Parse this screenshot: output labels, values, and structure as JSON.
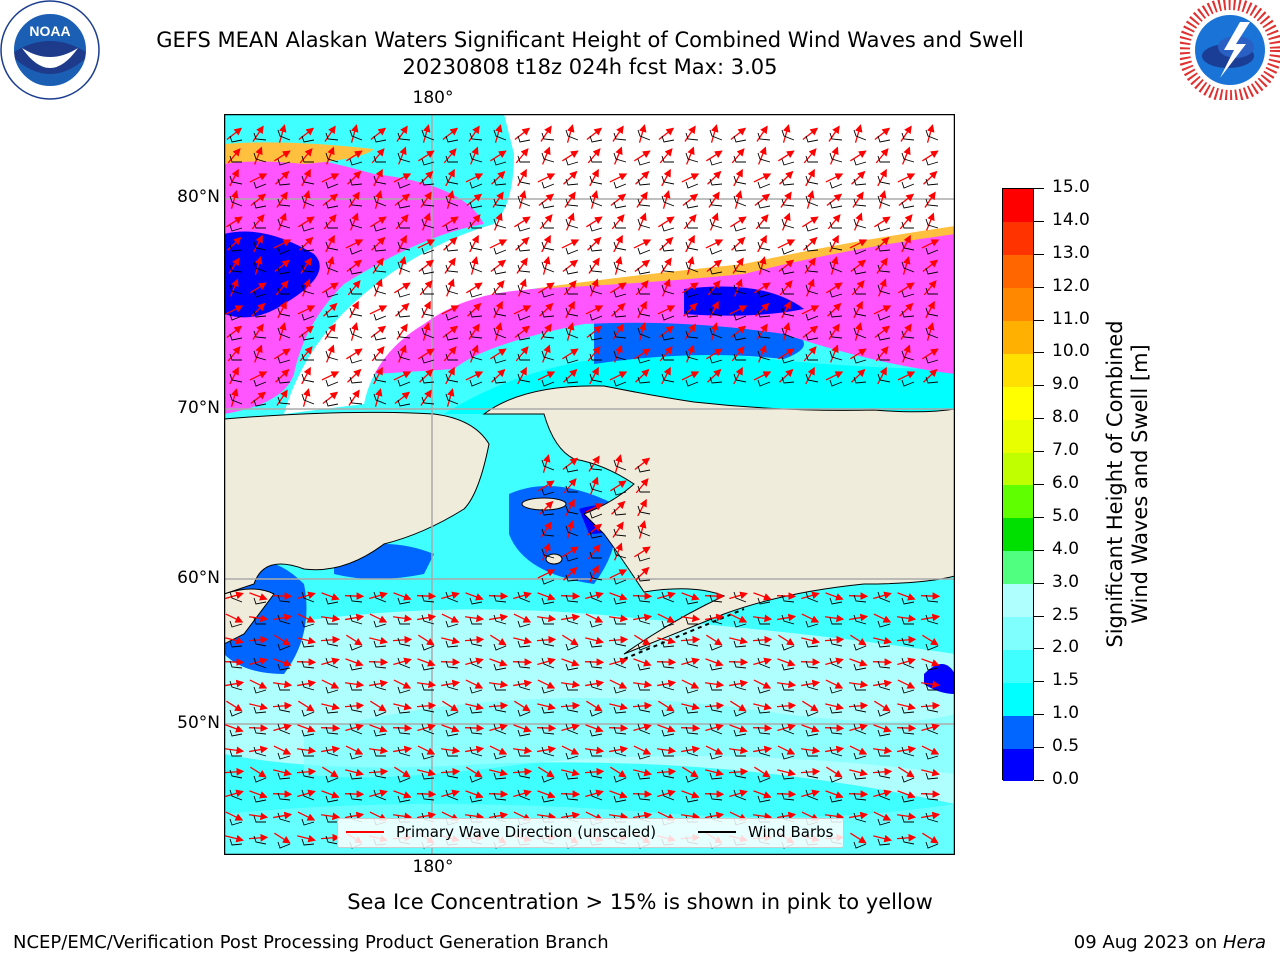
{
  "header": {
    "title_line1": "GEFS MEAN Alaskan Waters Significant Height of Combined Wind Waves and Swell",
    "title_line2": "20230808 t18z 024h fcst   Max: 3.05"
  },
  "logos": {
    "left": "noaa-logo",
    "right": "nws-logo",
    "left_text": "NOAA"
  },
  "map": {
    "longitude_label_top": "180°",
    "longitude_label_bottom": "180°",
    "latitude_labels": [
      "80°N",
      "70°N",
      "60°N",
      "50°N"
    ]
  },
  "colorbar": {
    "label_line1": "Significant Height of Combined",
    "label_line2": "Wind Waves and Swell [m]",
    "ticks": [
      "0.0",
      "0.5",
      "1.0",
      "1.5",
      "2.0",
      "2.5",
      "3.0",
      "4.0",
      "5.0",
      "6.0",
      "7.0",
      "8.0",
      "9.0",
      "10.0",
      "11.0",
      "12.0",
      "13.0",
      "14.0",
      "15.0"
    ],
    "colors": [
      "#0000ff",
      "#0066ff",
      "#00ffff",
      "#40ffff",
      "#80ffff",
      "#b0ffff",
      "#50ff80",
      "#00e000",
      "#60ff00",
      "#c0ff00",
      "#e8ff00",
      "#ffff00",
      "#ffe000",
      "#ffb000",
      "#ff8800",
      "#ff6600",
      "#ff3300",
      "#ff0000"
    ]
  },
  "legend": {
    "wave_label": "Primary Wave Direction (unscaled)",
    "wave_color": "#ff0000",
    "barb_label": "Wind Barbs",
    "barb_color": "#000000"
  },
  "footer": {
    "note": "Sea Ice Concentration > 15% is shown in pink to yellow",
    "left": "NCEP/EMC/Verification Post Processing Product Generation Branch",
    "right_prefix": "09 Aug 2023 on ",
    "right_host": "Hera"
  },
  "colors": {
    "land": "#efecdc",
    "ocean_main": "#40ffff",
    "ocean_light": "#b0ffff",
    "ice_pink": "#ff55ff",
    "ice_orange": "#ffc040"
  }
}
